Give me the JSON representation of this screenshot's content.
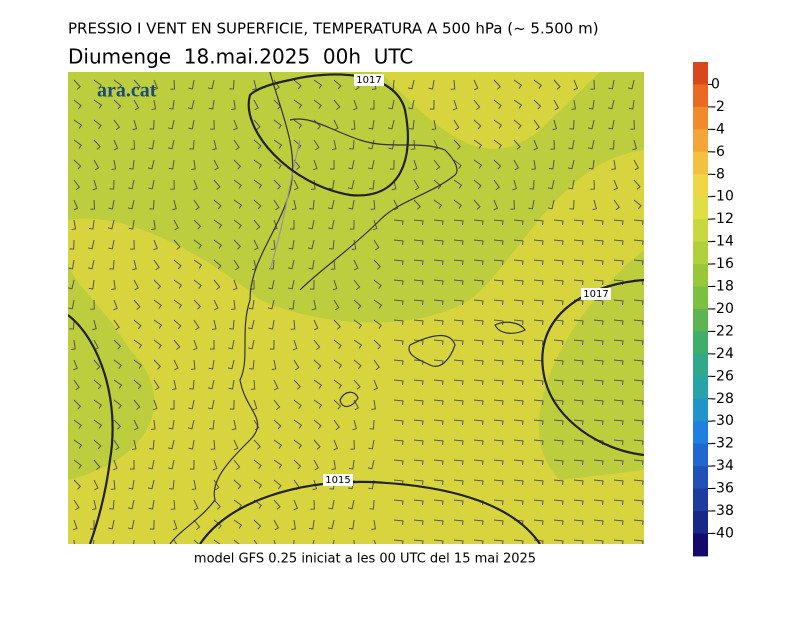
{
  "header": {
    "title": "PRESSIO I VENT EN SUPERFICIE, TEMPERATURA A 500 hPa (~ 5.500 m)",
    "subtitle": "Diumenge  18.mai.2025  00h  UTC"
  },
  "map": {
    "logo": "ara.cat",
    "isobars": [
      1017,
      1017,
      1015
    ]
  },
  "colorbar": {
    "ticks": [
      0,
      -2,
      -4,
      -6,
      -8,
      -10,
      -12,
      -14,
      -16,
      -18,
      -20,
      -22,
      -24,
      -26,
      -28,
      -30,
      -32,
      -34,
      -36,
      -38,
      -40
    ],
    "colors": [
      "#d9481c",
      "#eb6a23",
      "#f08a2b",
      "#f4a537",
      "#f4c03f",
      "#eed645",
      "#e0de45",
      "#c8d840",
      "#b0d03c",
      "#98c83a",
      "#7cc040",
      "#5cb550",
      "#40ad6a",
      "#30a88a",
      "#28a4a8",
      "#2094c8",
      "#2080e0",
      "#2068d0",
      "#2050b8",
      "#1c3ca0",
      "#182888",
      "#140a6c"
    ]
  },
  "footer": "model GFS 0.25 iniciat a les 00 UTC del 15 mai 2025"
}
